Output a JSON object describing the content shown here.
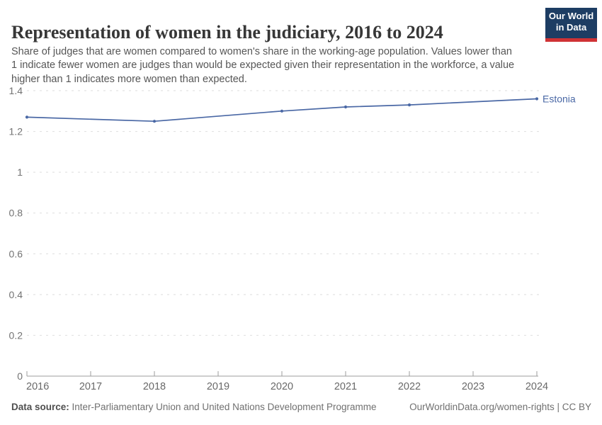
{
  "chart_data": {
    "type": "line",
    "title": "Representation of women in the judiciary, 2016 to 2024",
    "subtitle": "Share of judges that are women compared to women's share in the working-age population. Values lower than\n1 indicate fewer women are judges than would be expected given their representation in the workforce, a value\nhigher than 1 indicates more women than expected.",
    "series": [
      {
        "name": "Estonia",
        "color": "#4a68a5",
        "x": [
          2016,
          2018,
          2020,
          2021,
          2022,
          2024
        ],
        "values": [
          1.27,
          1.25,
          1.3,
          1.32,
          1.33,
          1.36
        ]
      }
    ],
    "x_ticks": [
      2016,
      2017,
      2018,
      2019,
      2020,
      2021,
      2022,
      2023,
      2024
    ],
    "y_tick_labels": [
      "0",
      "0.2",
      "0.4",
      "0.6",
      "0.8",
      "1",
      "1.2",
      "1.4"
    ],
    "xlim": [
      2016,
      2024
    ],
    "ylim": [
      0,
      1.4
    ],
    "xlabel": "",
    "ylabel": "",
    "grid": "horizontal-dashed",
    "legend_position": "end-of-line-label"
  },
  "logo": {
    "line1": "Our World",
    "line2": "in Data"
  },
  "footer": {
    "source_label": "Data source:",
    "source_text": " Inter-Parliamentary Union and United Nations Development Programme",
    "rights": "OurWorldinData.org/women-rights | CC BY"
  },
  "colors": {
    "line": "#4a68a5",
    "logo_bg": "#1d3d63",
    "logo_stripe": "#cf3235",
    "grid": "#dedede",
    "axis": "#9e9e9e",
    "y_tick_text": "#737373",
    "x_tick_text": "#696969",
    "title_text": "#373737",
    "subtitle_text": "#565656",
    "footer_text": "#707070"
  }
}
